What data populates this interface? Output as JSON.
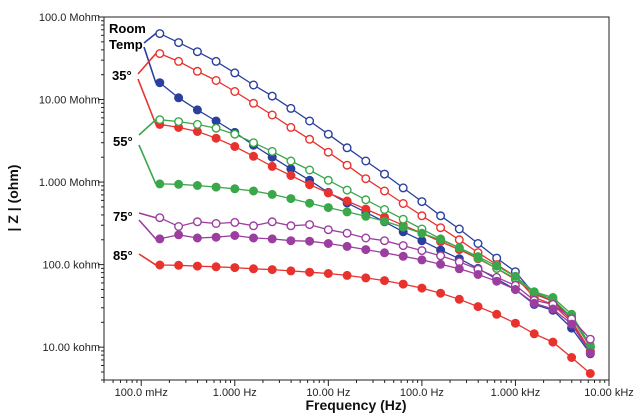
{
  "chart_data": {
    "type": "line",
    "xlabel": "Frequency  (Hz)",
    "ylabel": "| Z |  (ohm)",
    "x_scale": "log",
    "y_scale": "log",
    "xlim_hz": [
      0.04,
      10000
    ],
    "ylim_ohm": [
      4000,
      100000000
    ],
    "x_tick_values_hz": [
      0.1,
      1,
      10,
      100,
      1000,
      10000
    ],
    "x_tick_labels": [
      "100.0 mHz",
      "1.000 Hz",
      "10.00 Hz",
      "100.0 Hz",
      "1.000 kHz",
      "10.00 kHz"
    ],
    "y_tick_values_ohm": [
      100000000,
      10000000,
      1000000,
      100000,
      10000
    ],
    "y_tick_labels": [
      "100.0 Mohm",
      "10.00 Mohm",
      "1.000 Mohm",
      "100.0 kohm",
      "10.00 kohm"
    ],
    "x_hz": [
      0.158,
      0.251,
      0.398,
      0.631,
      1.0,
      1.585,
      2.512,
      3.981,
      6.31,
      10.0,
      15.85,
      25.12,
      39.81,
      63.1,
      100.0,
      158.5,
      251.2,
      398.1,
      631.0,
      1000.0,
      1585.0,
      2512.0,
      3981.0,
      6310.0
    ],
    "series": [
      {
        "name": "Room Temp",
        "color": "#2a3f9e",
        "fill": "open",
        "values": [
          63000000,
          49000000,
          38000000,
          29000000,
          21000000,
          15000000,
          11000000,
          7800000,
          5500000,
          3800000,
          2600000,
          1800000,
          1250000,
          850000,
          580000,
          390000,
          270000,
          180000,
          120000,
          82000,
          44000,
          36000,
          23000,
          10000
        ]
      },
      {
        "name": "Room Temp",
        "color": "#2a3f9e",
        "fill": "filled",
        "values": [
          16000000,
          10500000,
          7500000,
          5500000,
          4000000,
          2800000,
          2000000,
          1450000,
          1050000,
          750000,
          560000,
          430000,
          330000,
          250000,
          195000,
          150000,
          118000,
          90000,
          67000,
          50000,
          33000,
          28000,
          17000,
          8300
        ]
      },
      {
        "name": "35°",
        "color": "#e8322e",
        "fill": "open",
        "values": [
          36000000,
          29000000,
          22000000,
          17000000,
          12500000,
          9000000,
          6500000,
          4600000,
          3300000,
          2300000,
          1600000,
          1100000,
          780000,
          550000,
          390000,
          280000,
          200000,
          140000,
          100000,
          72000,
          40000,
          33000,
          20000,
          9000
        ]
      },
      {
        "name": "35°",
        "color": "#e8322e",
        "fill": "filled",
        "values": [
          5000000,
          4600000,
          4100000,
          3400000,
          2700000,
          2050000,
          1550000,
          1200000,
          930000,
          740000,
          590000,
          470000,
          375000,
          300000,
          240000,
          190000,
          152000,
          118000,
          90000,
          66000,
          45000,
          36000,
          21000,
          9000
        ]
      },
      {
        "name": "55°",
        "color": "#3aa84a",
        "fill": "open",
        "values": [
          5700000,
          5400000,
          5000000,
          4500000,
          3800000,
          3000000,
          2350000,
          1800000,
          1400000,
          1050000,
          800000,
          610000,
          465000,
          355000,
          270000,
          205000,
          160000,
          120000,
          90000,
          68000,
          46000,
          38000,
          23000,
          10000
        ]
      },
      {
        "name": "55°",
        "color": "#3aa84a",
        "fill": "filled",
        "values": [
          950000,
          940000,
          910000,
          870000,
          830000,
          780000,
          710000,
          630000,
          555000,
          490000,
          435000,
          385000,
          335000,
          285000,
          240000,
          200000,
          160000,
          125000,
          96000,
          72000,
          47000,
          40000,
          25000,
          10500
        ]
      },
      {
        "name": "75°",
        "color": "#9b3ea0",
        "fill": "open",
        "values": [
          370000,
          290000,
          330000,
          315000,
          325000,
          295000,
          330000,
          295000,
          305000,
          265000,
          240000,
          210000,
          195000,
          170000,
          148000,
          128000,
          108000,
          88000,
          70000,
          56000,
          37000,
          33000,
          22000,
          12500
        ]
      },
      {
        "name": "75°",
        "color": "#9b3ea0",
        "fill": "filled",
        "values": [
          205000,
          230000,
          210000,
          215000,
          225000,
          210000,
          205000,
          195000,
          192000,
          180000,
          166000,
          152000,
          139000,
          126000,
          114000,
          101000,
          89000,
          76000,
          63000,
          50000,
          34000,
          29000,
          19000,
          8500
        ]
      },
      {
        "name": "85°",
        "color": "#e8322e",
        "fill": "filled",
        "values": [
          99000,
          98000,
          96000,
          94000,
          92000,
          89000,
          87000,
          84000,
          81000,
          78000,
          74000,
          69000,
          64000,
          58000,
          52000,
          45000,
          38000,
          31000,
          25000,
          19500,
          14500,
          11500,
          7500,
          4800
        ]
      }
    ],
    "series_labels": [
      {
        "text": "Room",
        "color": "#2a3f9e"
      },
      {
        "text": "Temp",
        "color": "#2a3f9e"
      },
      {
        "text": "35°",
        "color": "#e8322e"
      },
      {
        "text": "55°",
        "color": "#3aa84a"
      },
      {
        "text": "75°",
        "color": "#9b3ea0"
      },
      {
        "text": "85°",
        "color": "#e8322e"
      }
    ],
    "grid": false,
    "legend": "inline labels at left of plot"
  }
}
